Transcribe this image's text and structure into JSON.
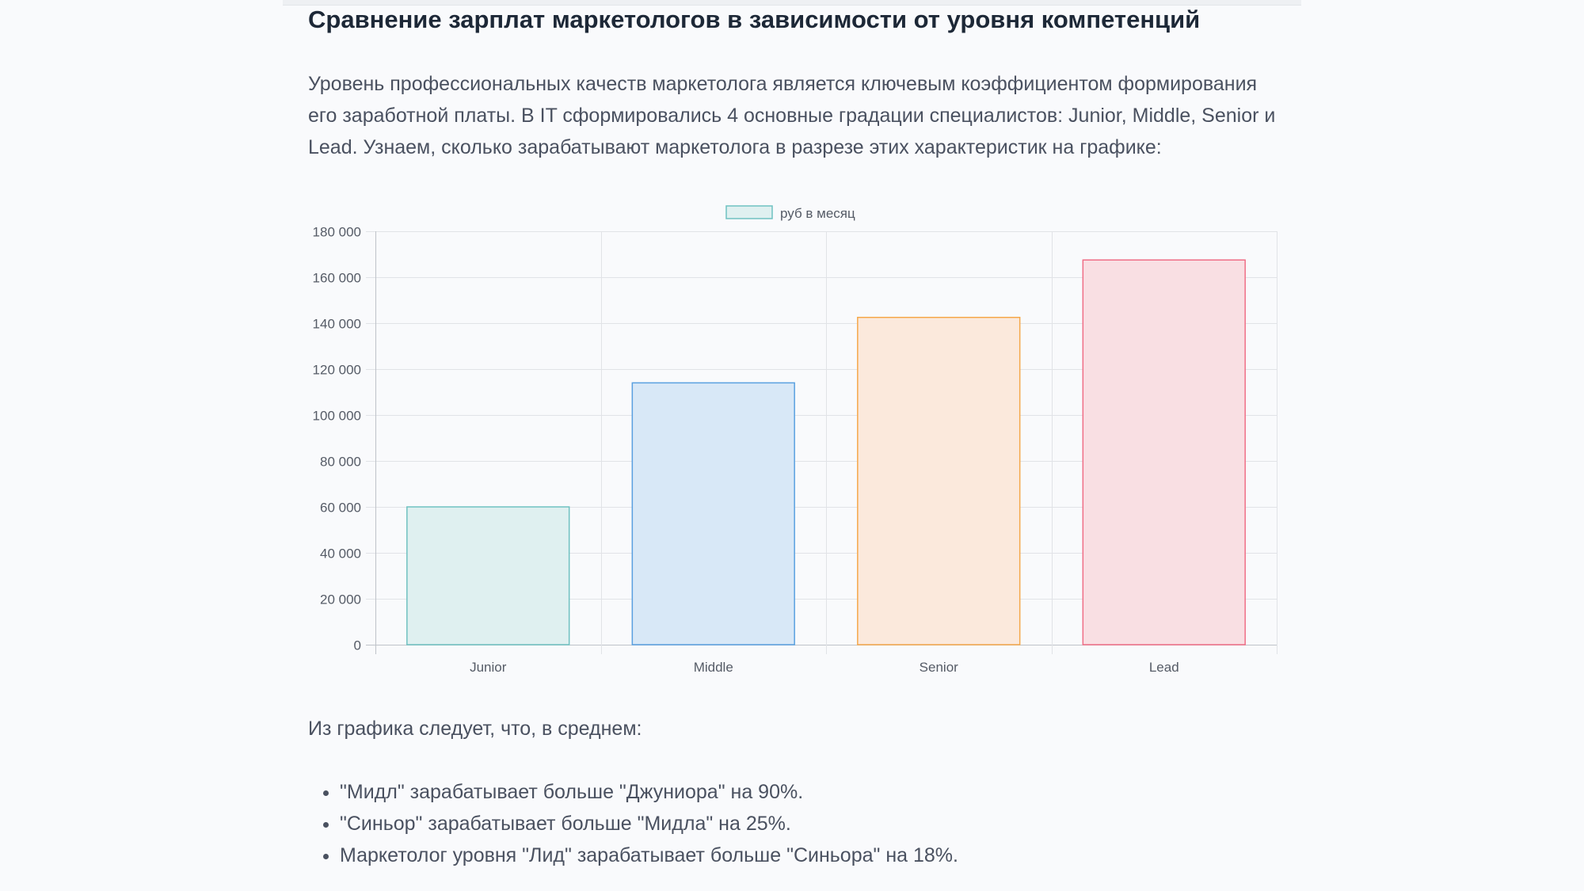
{
  "article": {
    "title": "Сравнение зарплат маркетологов в зависимости от уровня компетенций",
    "intro": "Уровень профессиональных качеств маркетолога является ключевым коэффициентом формирования его заработной платы. В IT сформировались 4 основные градации специалистов: Junior, Middle, Senior и Lead. Узнаем, сколько зарабатывают маркетолога в разрезе этих характеристик на графике:",
    "conclusion": "Из графика следует, что, в среднем:",
    "bullets": [
      "\"Мидл\" зарабатывает больше \"Джуниора\" на 90%.",
      "\"Синьор\" зарабатывает больше \"Мидла\" на 25%.",
      "Маркетолог уровня \"Лид\" зарабатывает больше \"Синьора\" на 18%."
    ]
  },
  "chart_data": {
    "type": "bar",
    "title": "",
    "xlabel": "",
    "ylabel": "",
    "legend": {
      "label": "руб в месяц",
      "position": "top-center"
    },
    "categories": [
      "Junior",
      "Middle",
      "Senior",
      "Lead"
    ],
    "values": [
      60000,
      114000,
      142500,
      167500
    ],
    "ylim": [
      0,
      180000
    ],
    "yticks": [
      0,
      20000,
      40000,
      60000,
      80000,
      100000,
      120000,
      140000,
      160000,
      180000
    ],
    "ytick_labels": [
      "0",
      "20 000",
      "40 000",
      "60 000",
      "80 000",
      "100 000",
      "120 000",
      "140 000",
      "160 000",
      "180 000"
    ],
    "grid": true,
    "colors": {
      "fill": [
        "#dff0f0",
        "#d8e8f7",
        "#fbe9dc",
        "#f9dfe3"
      ],
      "stroke": [
        "#6fc1c1",
        "#5aa0e0",
        "#f5a84b",
        "#f06e86"
      ],
      "legend_fill": "#dff0f0",
      "legend_stroke": "#6fc1c1"
    }
  }
}
